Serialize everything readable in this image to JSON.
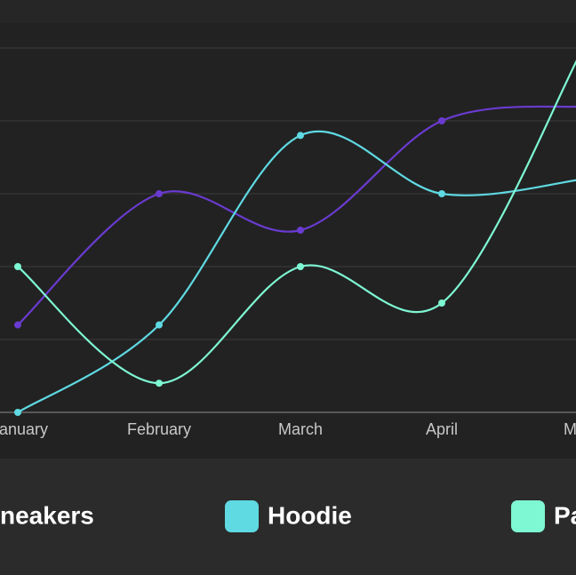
{
  "chart_data": {
    "type": "line",
    "categories": [
      "anuary",
      "February",
      "March",
      "April",
      "M"
    ],
    "series": [
      {
        "name": "neakers",
        "color": "#6a3bd0",
        "values": [
          1.2,
          3,
          2.5,
          4,
          4.2
        ]
      },
      {
        "name": "Hoodie",
        "color": "#5fd9e2",
        "values": [
          0,
          1.2,
          3.8,
          3,
          3.2
        ]
      },
      {
        "name": "Pa",
        "color": "#7ef7d3",
        "values": [
          2,
          0.4,
          2,
          1.5,
          5
        ]
      }
    ],
    "ylim": [
      0,
      5
    ],
    "yticks": [
      0,
      1,
      2,
      3,
      4,
      5
    ],
    "grid": true
  }
}
